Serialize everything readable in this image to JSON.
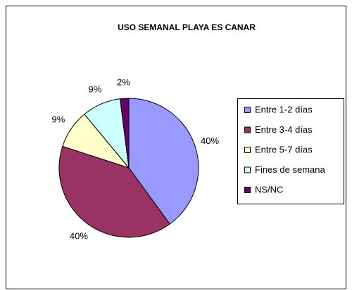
{
  "chart_data": {
    "type": "pie",
    "title": "USO SEMANAL PLAYA ES CANAR",
    "categories": [
      "Entre 1-2 días",
      "Entre 3-4 días",
      "Entre 5-7 días",
      "Fines de semana",
      "NS/NC"
    ],
    "values": [
      40,
      40,
      9,
      9,
      2
    ],
    "value_labels": [
      "40%",
      "40%",
      "9%",
      "9%",
      "2%"
    ],
    "colors": [
      "#9999ff",
      "#993366",
      "#ffffcc",
      "#ccffff",
      "#660066"
    ],
    "legend": "right"
  }
}
